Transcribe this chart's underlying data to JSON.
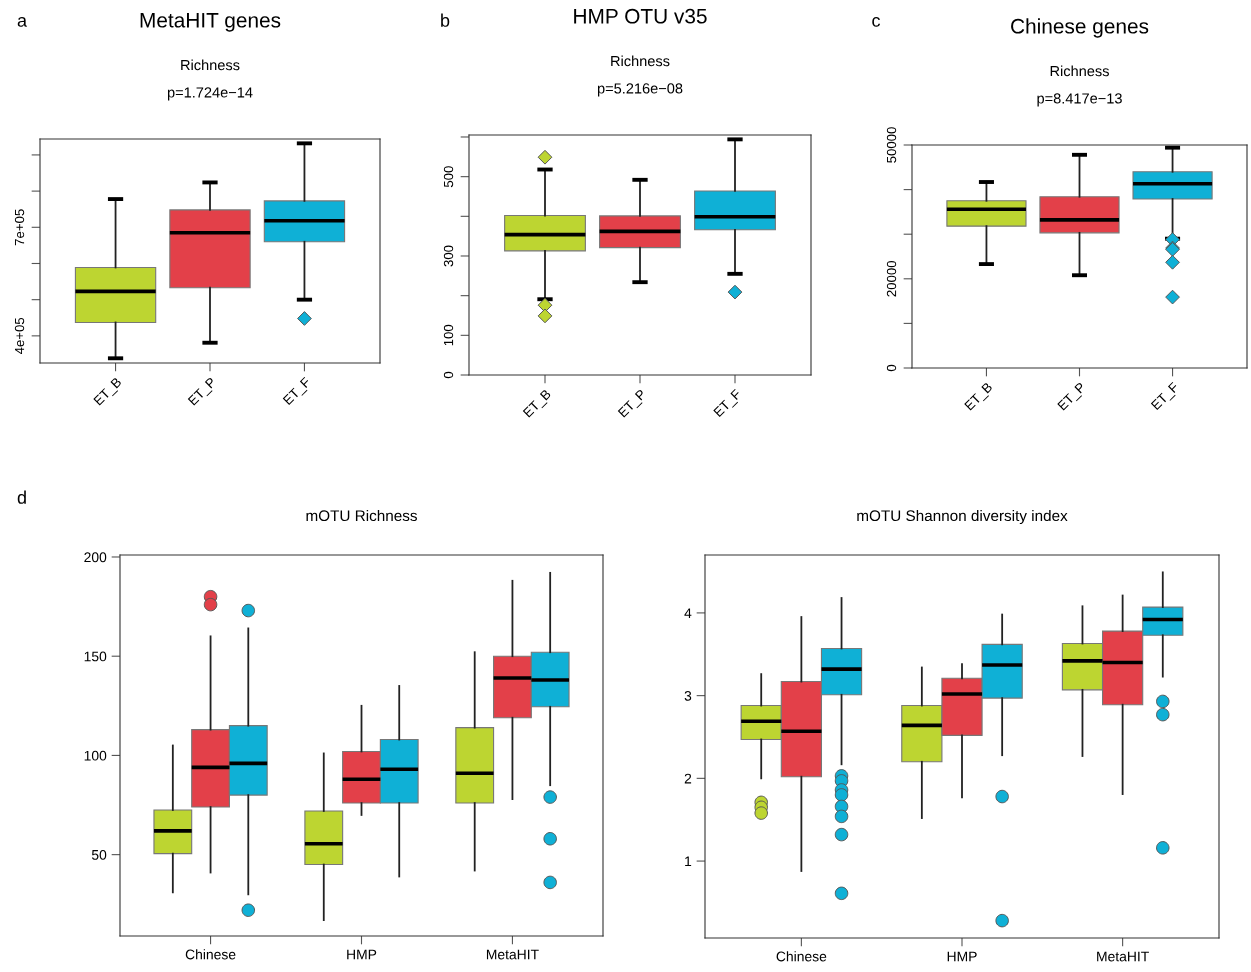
{
  "chart_data": [
    {
      "type": "box",
      "title": "MetaHIT genes",
      "subtitle": "Richness\np=1.724e−14",
      "annotations": [
        "a"
      ],
      "categories": [
        "ET_B",
        "ET_P",
        "ET_F"
      ],
      "colors": [
        "#bdd531",
        "#e34049",
        "#0fb0d6"
      ],
      "marker": "diamond",
      "grid": false,
      "ylim": [
        325000,
        944000
      ],
      "yticks": [
        {
          "value": 400000,
          "label": "4e+05"
        },
        {
          "value": 500000,
          "label": null
        },
        {
          "value": 600000,
          "label": null
        },
        {
          "value": 700000,
          "label": "7e+05"
        },
        {
          "value": 800000,
          "label": null
        },
        {
          "value": 900000,
          "label": null
        }
      ],
      "boxes": [
        {
          "low": 338000,
          "q1": 437000,
          "median": 523000,
          "q3": 589000,
          "high": 778000
        },
        {
          "low": 381000,
          "q1": 533000,
          "median": 685000,
          "q3": 748000,
          "high": 824000
        },
        {
          "low": 500000,
          "q1": 660000,
          "median": 718000,
          "q3": 773000,
          "high": 932000,
          "outliers": [
            448000
          ]
        }
      ]
    },
    {
      "type": "box",
      "title": "HMP OTU v35",
      "subtitle": "Richness\np=5.216e−08",
      "annotations": [
        "b"
      ],
      "categories": [
        "ET_B",
        "ET_P",
        "ET_F"
      ],
      "colors": [
        "#bdd531",
        "#e34049",
        "#0fb0d6"
      ],
      "marker": "diamond",
      "grid": false,
      "ylim": [
        0,
        605
      ],
      "yticks": [
        0,
        100,
        {
          "value": 200,
          "label": null
        },
        300,
        {
          "value": 400,
          "label": null
        },
        500,
        {
          "value": 600,
          "label": null
        }
      ],
      "boxes": [
        {
          "low": 191,
          "q1": 313,
          "median": 354,
          "q3": 402,
          "high": 518,
          "outliers": [
            549,
            176,
            149
          ]
        },
        {
          "low": 234,
          "q1": 321,
          "median": 362,
          "q3": 401,
          "high": 492
        },
        {
          "low": 255,
          "q1": 366,
          "median": 399,
          "q3": 464,
          "high": 594,
          "outliers": [
            209
          ]
        }
      ]
    },
    {
      "type": "box",
      "title": "Chinese genes",
      "subtitle": "Richness\np=8.417e−13",
      "annotations": [
        "c"
      ],
      "categories": [
        "ET_B",
        "ET_P",
        "ET_F"
      ],
      "colors": [
        "#bdd531",
        "#e34049",
        "#0fb0d6"
      ],
      "marker": "diamond",
      "grid": false,
      "ylim": [
        0,
        50000
      ],
      "yticks": [
        0,
        {
          "value": 10000,
          "label": null
        },
        20000,
        {
          "value": 30000,
          "label": null
        },
        {
          "value": 40000,
          "label": null
        },
        50000
      ],
      "boxes": [
        {
          "low": 23300,
          "q1": 31800,
          "median": 35600,
          "q3": 37500,
          "high": 41700
        },
        {
          "low": 20800,
          "q1": 30300,
          "median": 33200,
          "q3": 38400,
          "high": 47800
        },
        {
          "low": 29000,
          "q1": 37900,
          "median": 41300,
          "q3": 44000,
          "high": 49400,
          "outliers": [
            28800,
            26900,
            26600,
            23700,
            15900
          ]
        }
      ]
    },
    {
      "type": "box",
      "title": "mOTU Richness",
      "annotations": [
        "d"
      ],
      "categories": [
        "Chinese",
        "HMP",
        "MetaHIT"
      ],
      "marker": "circle",
      "grid": false,
      "ylim": [
        9,
        201
      ],
      "yticks": [
        50,
        100,
        150,
        200
      ],
      "series": [
        {
          "color": "#bdd531",
          "boxes": [
            {
              "low": 31,
              "q1": 50.5,
              "median": 62,
              "q3": 72.5,
              "high": 105
            },
            {
              "low": 17,
              "q1": 45,
              "median": 55.5,
              "q3": 72,
              "high": 101
            },
            {
              "low": 42,
              "q1": 76,
              "median": 91,
              "q3": 114,
              "high": 152
            }
          ]
        },
        {
          "color": "#e34049",
          "boxes": [
            {
              "low": 41,
              "q1": 74,
              "median": 94,
              "q3": 113,
              "high": 160,
              "outliers": [
                180,
                176
              ]
            },
            {
              "low": 70,
              "q1": 76,
              "median": 88,
              "q3": 102,
              "high": 125
            },
            {
              "low": 78,
              "q1": 119,
              "median": 139,
              "q3": 150,
              "high": 188
            }
          ]
        },
        {
          "color": "#0fb0d6",
          "boxes": [
            {
              "low": 30,
              "q1": 80,
              "median": 96,
              "q3": 115,
              "high": 164,
              "outliers": [
                173,
                22
              ]
            },
            {
              "low": 39,
              "q1": 76,
              "median": 93,
              "q3": 108,
              "high": 135
            },
            {
              "low": 85,
              "q1": 124.5,
              "median": 138,
              "q3": 152,
              "high": 192,
              "outliers": [
                79,
                58,
                36
              ]
            }
          ]
        }
      ]
    },
    {
      "type": "box",
      "title": "mOTU Shannon diversity index",
      "categories": [
        "Chinese",
        "HMP",
        "MetaHIT"
      ],
      "marker": "circle",
      "grid": false,
      "ylim": [
        0.07,
        4.7
      ],
      "yticks": [
        1,
        2,
        3,
        4
      ],
      "series": [
        {
          "color": "#bdd531",
          "boxes": [
            {
              "low": 2.0,
              "q1": 2.47,
              "median": 2.69,
              "q3": 2.88,
              "high": 3.26,
              "outliers": [
                1.71,
                1.65,
                1.58
              ]
            },
            {
              "low": 1.52,
              "q1": 2.2,
              "median": 2.64,
              "q3": 2.88,
              "high": 3.34
            },
            {
              "low": 2.27,
              "q1": 3.07,
              "median": 3.42,
              "q3": 3.63,
              "high": 4.08
            }
          ]
        },
        {
          "color": "#e34049",
          "boxes": [
            {
              "low": 0.88,
              "q1": 2.02,
              "median": 2.57,
              "q3": 3.17,
              "high": 3.95
            },
            {
              "low": 1.77,
              "q1": 2.52,
              "median": 3.02,
              "q3": 3.21,
              "high": 3.38
            },
            {
              "low": 1.81,
              "q1": 2.89,
              "median": 3.4,
              "q3": 3.78,
              "high": 4.21
            }
          ]
        },
        {
          "color": "#0fb0d6",
          "boxes": [
            {
              "low": 2.17,
              "q1": 3.01,
              "median": 3.32,
              "q3": 3.57,
              "high": 4.18,
              "outliers": [
                2.03,
                1.97,
                1.86,
                1.8,
                1.66,
                1.54,
                1.32,
                0.61
              ]
            },
            {
              "low": 2.28,
              "q1": 2.97,
              "median": 3.37,
              "q3": 3.62,
              "high": 3.98,
              "outliers": [
                1.78,
                0.28
              ]
            },
            {
              "low": 3.23,
              "q1": 3.73,
              "median": 3.92,
              "q3": 4.07,
              "high": 4.49,
              "outliers": [
                2.93,
                2.77,
                1.16
              ]
            }
          ]
        }
      ]
    }
  ]
}
